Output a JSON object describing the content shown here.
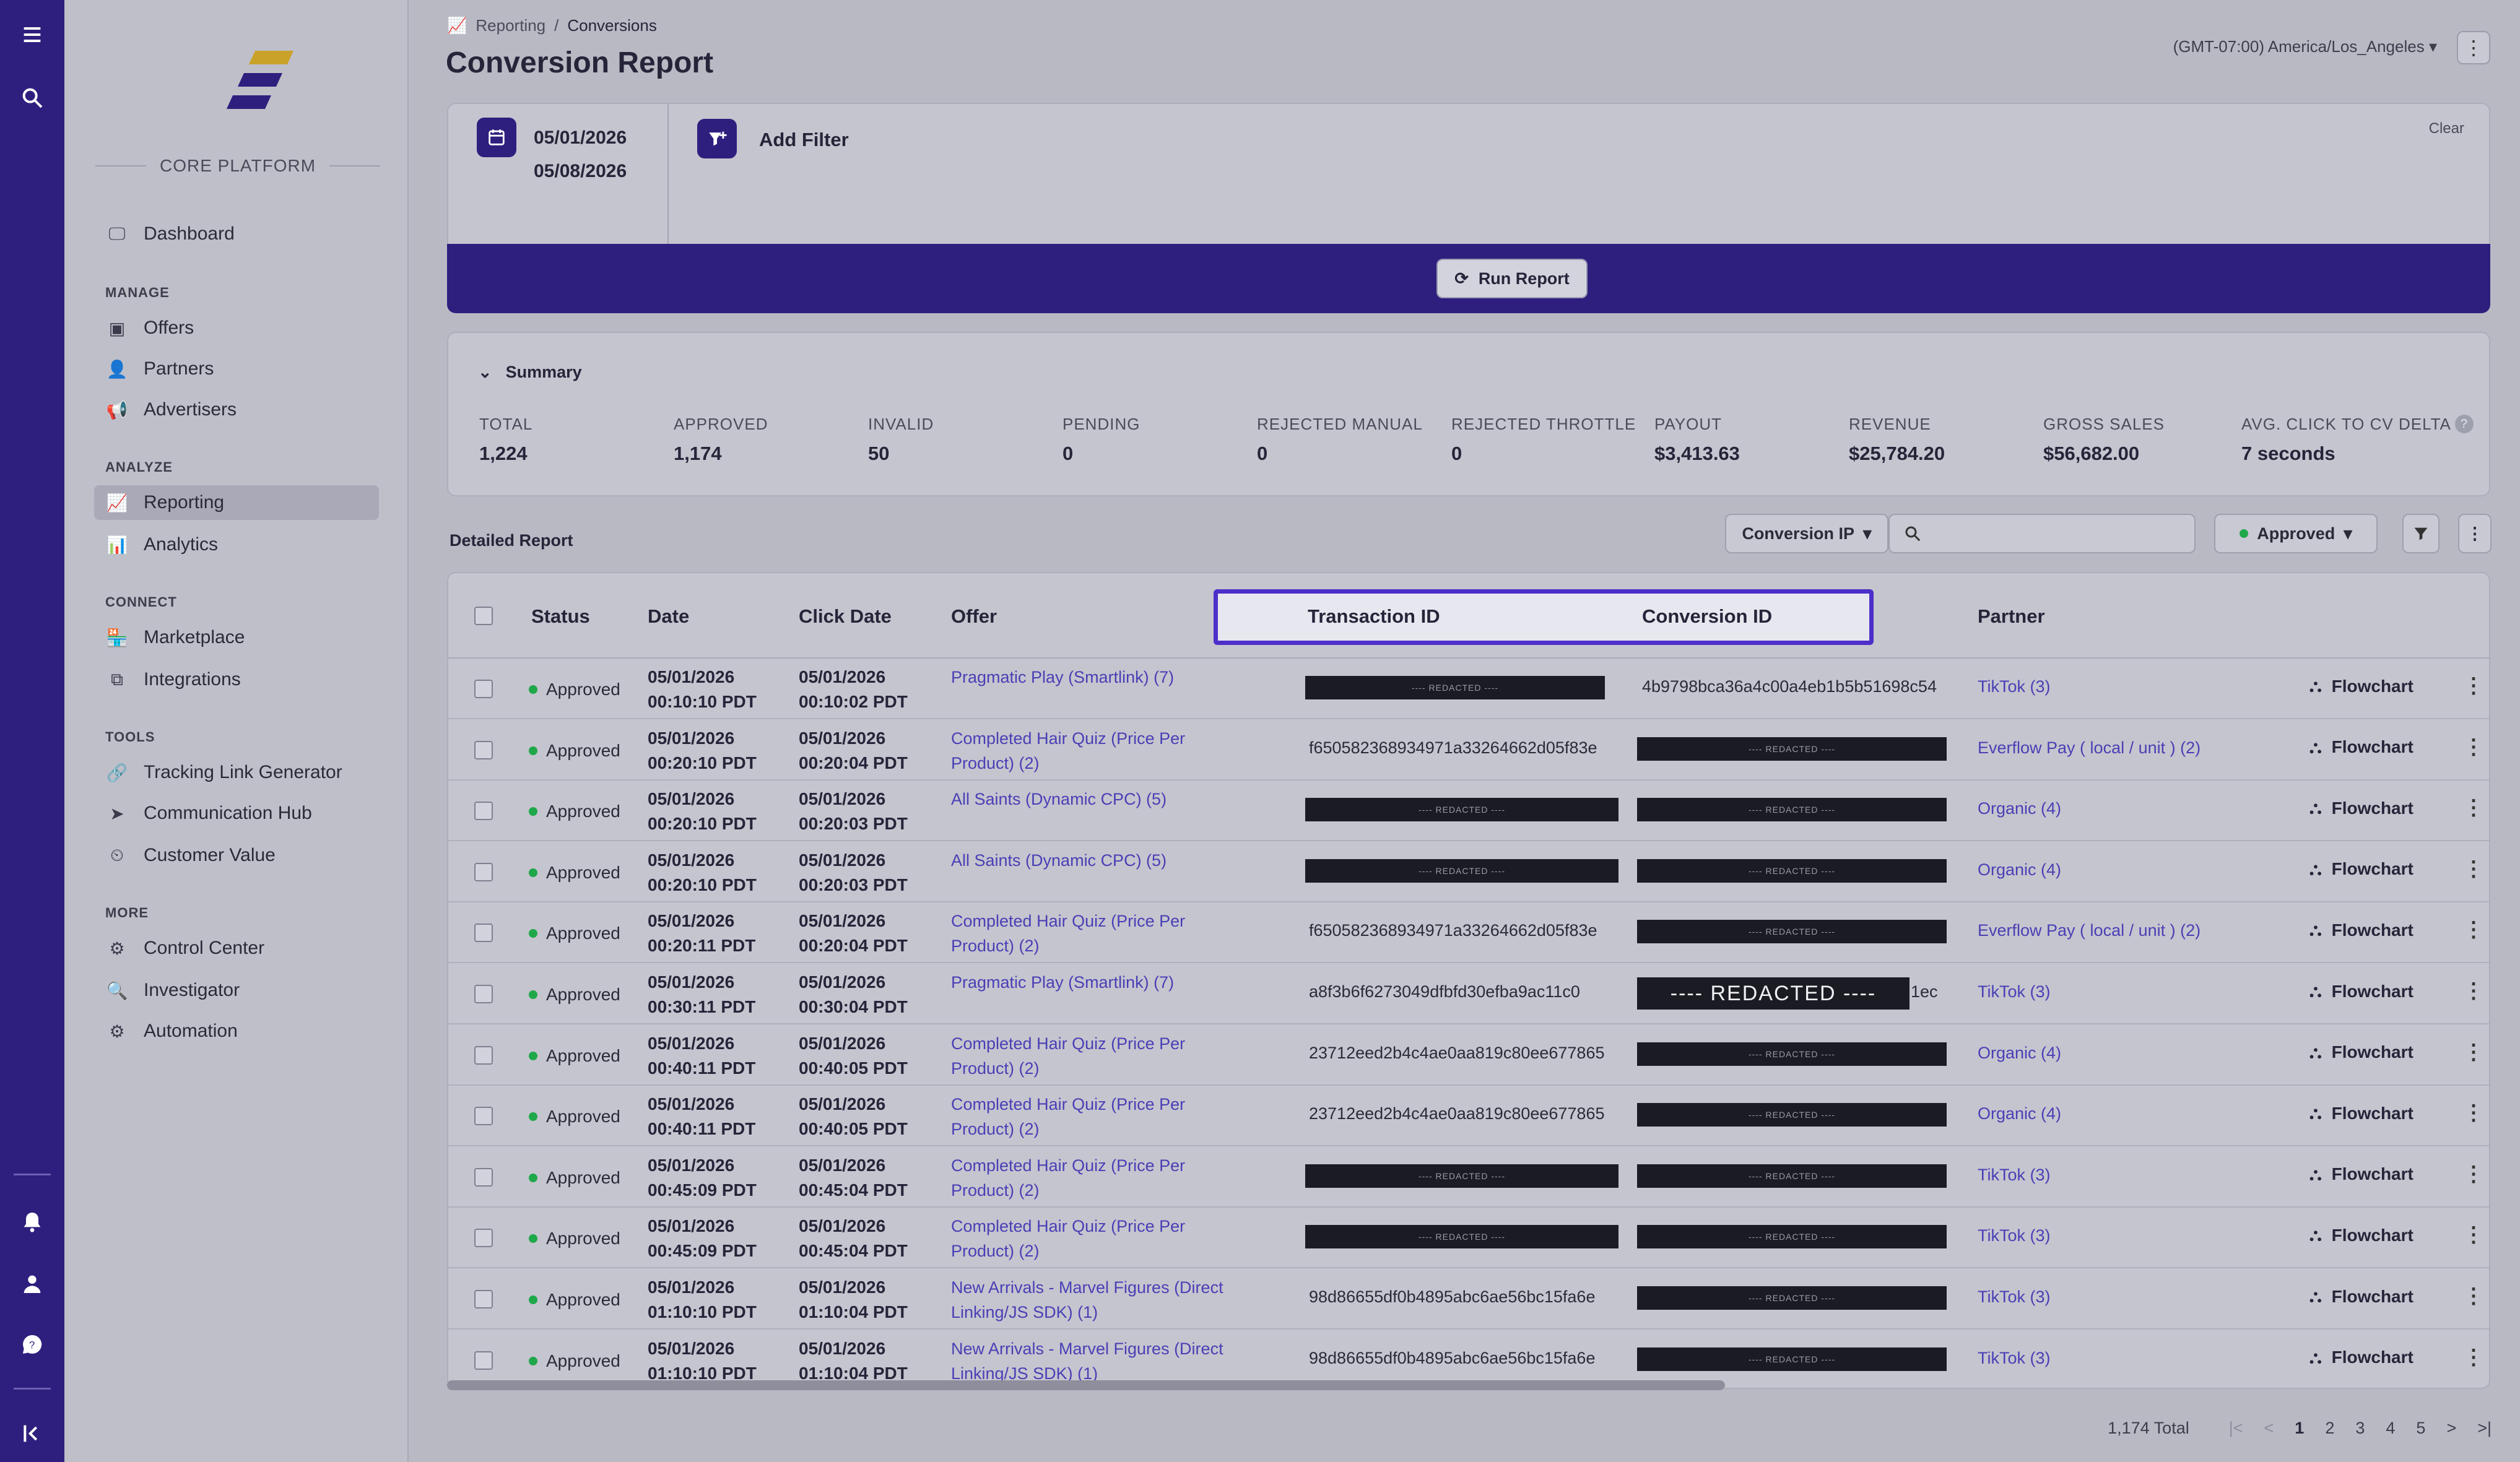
{
  "rail": {
    "icons": [
      "menu-icon",
      "search-icon",
      "bell-icon",
      "user-icon",
      "help-chat-icon",
      "collapse-icon"
    ]
  },
  "sidebar": {
    "brand_section": "CORE PLATFORM",
    "dashboard": "Dashboard",
    "sections": {
      "manage": "MANAGE",
      "analyze": "ANALYZE",
      "connect": "CONNECT",
      "tools": "TOOLS",
      "more": "MORE"
    },
    "items": {
      "offers": "Offers",
      "partners": "Partners",
      "advertisers": "Advertisers",
      "reporting": "Reporting",
      "analytics": "Analytics",
      "marketplace": "Marketplace",
      "integrations": "Integrations",
      "tracking": "Tracking Link Generator",
      "communication": "Communication Hub",
      "customer_value": "Customer Value",
      "control_center": "Control Center",
      "investigator": "Investigator",
      "automation": "Automation"
    }
  },
  "header": {
    "breadcrumb": [
      "Reporting",
      "/",
      "Conversions"
    ],
    "title": "Conversion Report",
    "timezone": "(GMT-07:00) America/Los_Angeles",
    "kebab": "⋮"
  },
  "filter": {
    "date_from": "05/01/2026",
    "date_to": "05/08/2026",
    "add_filter": "Add Filter",
    "clear": "Clear",
    "run": "Run Report"
  },
  "summary": {
    "title": "Summary",
    "stats": [
      {
        "label": "TOTAL",
        "value": "1,224"
      },
      {
        "label": "APPROVED",
        "value": "1,174"
      },
      {
        "label": "INVALID",
        "value": "50"
      },
      {
        "label": "PENDING",
        "value": "0"
      },
      {
        "label": "REJECTED MANUAL",
        "value": "0"
      },
      {
        "label": "REJECTED THROTTLE",
        "value": "0"
      },
      {
        "label": "PAYOUT",
        "value": "$3,413.63"
      },
      {
        "label": "REVENUE",
        "value": "$25,784.20"
      },
      {
        "label": "GROSS SALES",
        "value": "$56,682.00"
      },
      {
        "label": "AVG. CLICK TO CV DELTA",
        "value": "7 seconds"
      }
    ]
  },
  "detailed": {
    "title": "Detailed Report",
    "search_field": "Conversion IP",
    "status_filter": "Approved",
    "columns": [
      "Status",
      "Date",
      "Click Date",
      "Offer",
      "Transaction ID",
      "Conversion ID",
      "Partner"
    ],
    "flow_label": "Flowchart",
    "status_label": "Approved",
    "rows": [
      {
        "date": [
          "05/01/2026",
          "00:10:10 PDT"
        ],
        "click": [
          "05/01/2026",
          "00:10:02 PDT"
        ],
        "offer": "Pragmatic Play (Smartlink) (7)",
        "txn": "---- REDACTED ----",
        "conv": "4b9798bca36a4c00a4eb1b5b51698c54",
        "partner": "TikTok (3)"
      },
      {
        "date": [
          "05/01/2026",
          "00:20:10 PDT"
        ],
        "click": [
          "05/01/2026",
          "00:20:04 PDT"
        ],
        "offer": "Completed Hair Quiz (Price Per Product) (2)",
        "txn": "f650582368934971a33264662d05f83e",
        "conv": "---- REDACTED ----",
        "partner": "Everflow Pay ( local / unit ) (2)"
      },
      {
        "date": [
          "05/01/2026",
          "00:20:10 PDT"
        ],
        "click": [
          "05/01/2026",
          "00:20:03 PDT"
        ],
        "offer": "All Saints (Dynamic CPC) (5)",
        "txn": "---- REDACTED ----",
        "conv": "---- REDACTED ----",
        "partner": "Organic (4)"
      },
      {
        "date": [
          "05/01/2026",
          "00:20:10 PDT"
        ],
        "click": [
          "05/01/2026",
          "00:20:03 PDT"
        ],
        "offer": "All Saints (Dynamic CPC) (5)",
        "txn": "---- REDACTED ----",
        "conv": "---- REDACTED ----",
        "partner": "Organic (4)"
      },
      {
        "date": [
          "05/01/2026",
          "00:20:11 PDT"
        ],
        "click": [
          "05/01/2026",
          "00:20:04 PDT"
        ],
        "offer": "Completed Hair Quiz (Price Per Product) (2)",
        "txn": "f650582368934971a33264662d05f83e",
        "conv": "---- REDACTED ----",
        "partner": "Everflow Pay ( local / unit ) (2)"
      },
      {
        "date": [
          "05/01/2026",
          "00:30:11 PDT"
        ],
        "click": [
          "05/01/2026",
          "00:30:04 PDT"
        ],
        "offer": "Pragmatic Play (Smartlink) (7)",
        "txn": "a8f3b6f6273049dfbfd30efba9ac11c0",
        "conv": "---- REDACTED ----",
        "conv_tail": "1ec",
        "partner": "TikTok (3)"
      },
      {
        "date": [
          "05/01/2026",
          "00:40:11 PDT"
        ],
        "click": [
          "05/01/2026",
          "00:40:05 PDT"
        ],
        "offer": "Completed Hair Quiz (Price Per Product) (2)",
        "txn": "23712eed2b4c4ae0aa819c80ee677865",
        "conv": "---- REDACTED ----",
        "partner": "Organic (4)"
      },
      {
        "date": [
          "05/01/2026",
          "00:40:11 PDT"
        ],
        "click": [
          "05/01/2026",
          "00:40:05 PDT"
        ],
        "offer": "Completed Hair Quiz (Price Per Product) (2)",
        "txn": "23712eed2b4c4ae0aa819c80ee677865",
        "conv": "---- REDACTED ----",
        "partner": "Organic (4)"
      },
      {
        "date": [
          "05/01/2026",
          "00:45:09 PDT"
        ],
        "click": [
          "05/01/2026",
          "00:45:04 PDT"
        ],
        "offer": "Completed Hair Quiz (Price Per Product) (2)",
        "txn": "---- REDACTED ----",
        "conv": "---- REDACTED ----",
        "partner": "TikTok (3)"
      },
      {
        "date": [
          "05/01/2026",
          "00:45:09 PDT"
        ],
        "click": [
          "05/01/2026",
          "00:45:04 PDT"
        ],
        "offer": "Completed Hair Quiz (Price Per Product) (2)",
        "txn": "---- REDACTED ----",
        "conv": "---- REDACTED ----",
        "partner": "TikTok (3)"
      },
      {
        "date": [
          "05/01/2026",
          "01:10:10 PDT"
        ],
        "click": [
          "05/01/2026",
          "01:10:04 PDT"
        ],
        "offer": "New Arrivals - Marvel Figures (Direct Linking/JS SDK) (1)",
        "txn": "98d86655df0b4895abc6ae56bc15fa6e",
        "conv": "---- REDACTED ----",
        "partner": "TikTok (3)"
      },
      {
        "date": [
          "05/01/2026",
          "01:10:10 PDT"
        ],
        "click": [
          "05/01/2026",
          "01:10:04 PDT"
        ],
        "offer": "New Arrivals - Marvel Figures (Direct Linking/JS SDK) (1)",
        "txn": "98d86655df0b4895abc6ae56bc15fa6e",
        "conv": "---- REDACTED ----",
        "partner": "TikTok (3)"
      }
    ]
  },
  "pager": {
    "total": "1,174 Total",
    "pages": [
      "1",
      "2",
      "3",
      "4",
      "5"
    ],
    "first": "|<",
    "prev": "<",
    "next": ">",
    "last": ">|"
  },
  "colors": {
    "primary": "#2e1f7e",
    "highlight": "#4d2fc9",
    "status_green": "#1fa84a",
    "link": "#4a3fb5"
  }
}
